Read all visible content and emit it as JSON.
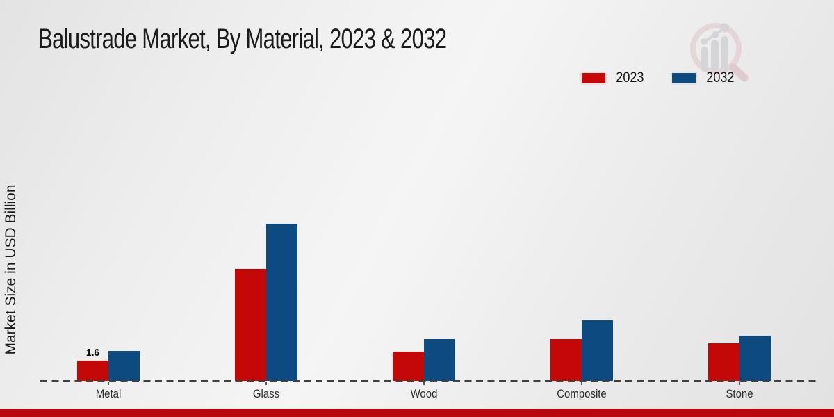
{
  "page": {
    "footer_band_color": "#b90710",
    "background_color": "#e9e9e9",
    "watermark_icon": "bar-chart-magnifier-logo"
  },
  "chart_data": {
    "type": "bar",
    "title": "Balustrade Market, By Material, 2023 & 2032",
    "ylabel": "Market Size in USD Billion",
    "xlabel": "",
    "unit": "USD Billion",
    "categories": [
      "Metal",
      "Glass",
      "Wood",
      "Composite",
      "Stone"
    ],
    "series": [
      {
        "name": "2023",
        "color": "#c40707",
        "values": [
          1.6,
          8.9,
          2.3,
          3.3,
          3.0
        ]
      },
      {
        "name": "2032",
        "color": "#0d4a80",
        "values": [
          2.4,
          12.5,
          3.3,
          4.8,
          3.6
        ]
      }
    ],
    "ylim": [
      0,
      13
    ],
    "grid": false,
    "legend_position": "top-right",
    "baseline_style": "dashed",
    "annotations": [
      {
        "category": "Metal",
        "series": "2023",
        "text": "1.6"
      }
    ]
  }
}
